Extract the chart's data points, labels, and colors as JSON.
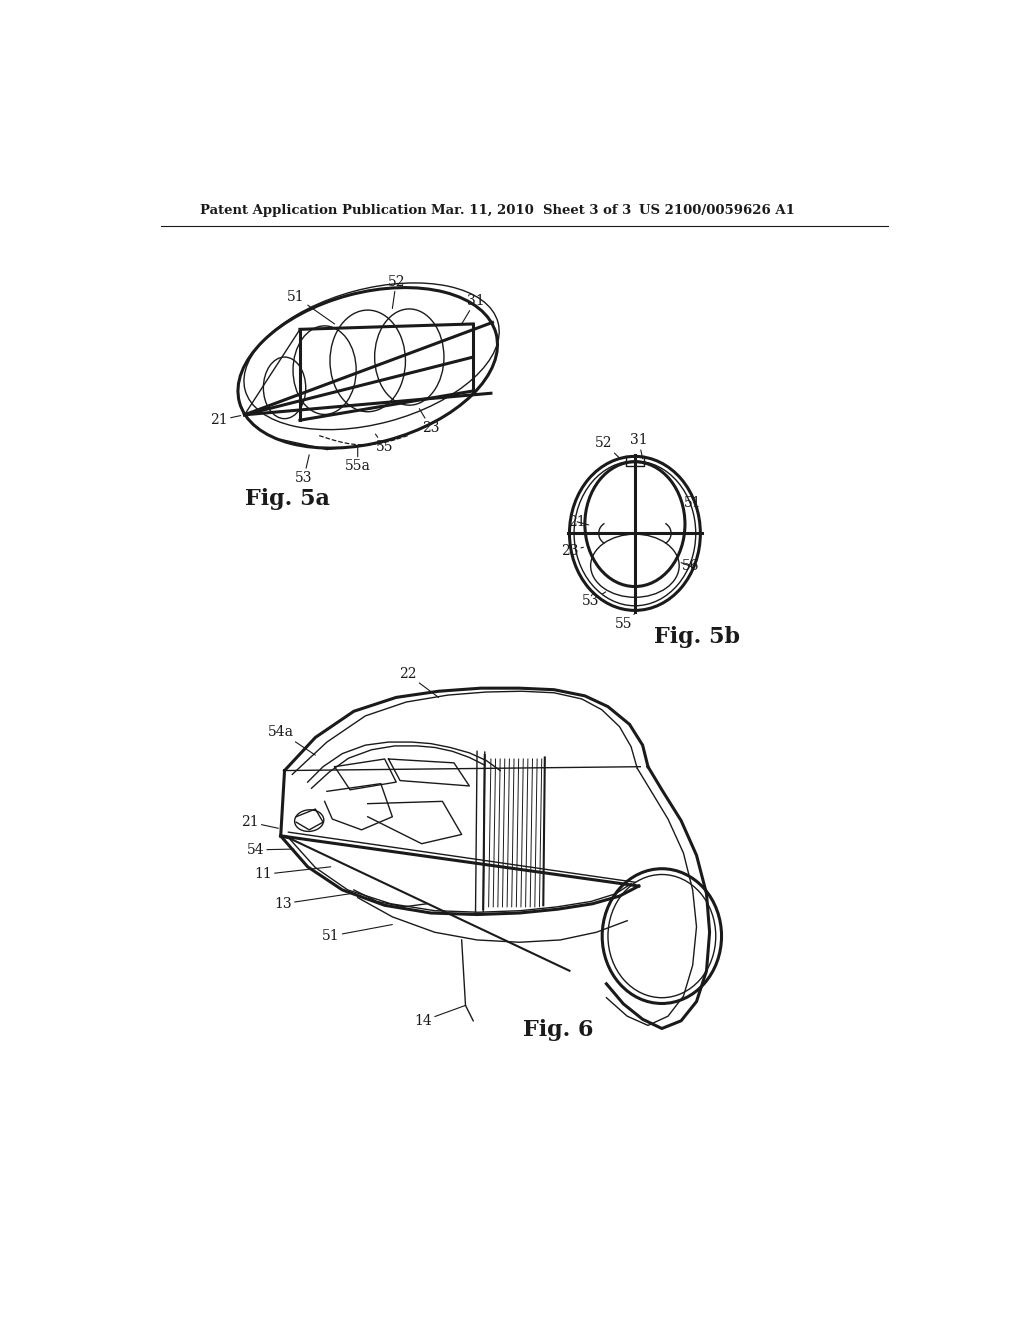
{
  "bg_color": "#ffffff",
  "line_color": "#1a1a1a",
  "header_left": "Patent Application Publication",
  "header_mid": "Mar. 11, 2010  Sheet 3 of 3",
  "header_right": "US 2100/0059626 A1",
  "fig5a_label": "Fig. 5a",
  "fig5b_label": "Fig. 5b",
  "fig6_label": "Fig. 6",
  "header_font_size": 10,
  "annot_font_size": 11
}
